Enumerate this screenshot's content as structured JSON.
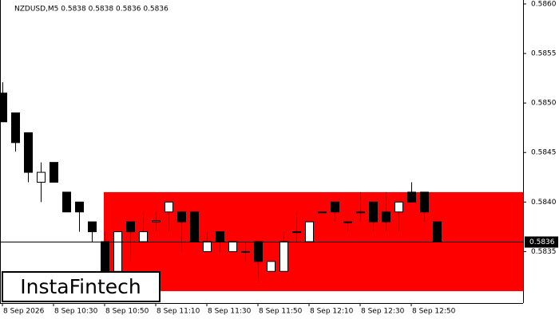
{
  "chart_data": {
    "type": "candlestick",
    "title": "NZDUSD,M5  0.5838 0.5838 0.5836 0.5836",
    "watermark": "InstaFintech",
    "categories": [
      "8 Sep 2026",
      null,
      null,
      null,
      "8 Sep 10:30",
      null,
      null,
      null,
      "8 Sep 10:50",
      null,
      null,
      null,
      "8 Sep 11:10",
      null,
      null,
      null,
      "8 Sep 11:30",
      null,
      null,
      null,
      "8 Sep 11:50",
      null,
      null,
      null,
      "8 Sep 12:10",
      null,
      null,
      null,
      "8 Sep 12:30",
      null,
      null,
      null,
      "8 Sep 12:50",
      null,
      null
    ],
    "open": [
      0.5851,
      0.5849,
      0.5847,
      0.5842,
      0.5844,
      0.5841,
      0.584,
      0.5838,
      0.5836,
      0.5833,
      0.5838,
      0.5836,
      0.5838,
      0.5839,
      0.5839,
      0.5839,
      0.5835,
      0.5837,
      0.5835,
      0.5835,
      0.5836,
      0.5833,
      0.5833,
      0.5837,
      0.5836,
      0.5839,
      0.584,
      0.5838,
      0.5839,
      0.584,
      0.5839,
      0.5839,
      0.5841,
      0.5841,
      0.5838
    ],
    "high": [
      0.58521,
      0.5849,
      0.5847,
      0.5844,
      0.5844,
      0.5841,
      0.584,
      0.5838,
      0.5837,
      0.5837,
      0.5838,
      0.5839,
      0.5839,
      0.584,
      0.5839,
      0.5839,
      0.5837,
      0.5837,
      0.5836,
      0.5836,
      0.5836,
      0.5834,
      0.5837,
      0.5839,
      0.5838,
      0.5839,
      0.584,
      0.5838,
      0.5841,
      0.584,
      0.5841,
      0.584,
      0.5842,
      0.5841,
      0.5838
    ],
    "low": [
      0.58481,
      0.58451,
      0.5842,
      0.584,
      0.5842,
      0.5839,
      0.5837,
      0.5836,
      0.5831,
      0.5833,
      0.5834,
      0.5836,
      0.5837,
      0.5837,
      0.5835,
      0.5836,
      0.5835,
      0.5835,
      0.5835,
      0.5834,
      0.5832,
      0.5833,
      0.5833,
      0.5836,
      0.5836,
      0.5839,
      0.5838,
      0.5837,
      0.5838,
      0.5837,
      0.5837,
      0.5837,
      0.584,
      0.5838,
      0.5836
    ],
    "close": [
      0.58481,
      0.5846,
      0.5843,
      0.5843,
      0.5842,
      0.5839,
      0.5839,
      0.5837,
      0.5833,
      0.5837,
      0.5837,
      0.5837,
      0.58381,
      0.584,
      0.5838,
      0.5836,
      0.5836,
      0.5836,
      0.5836,
      0.5835,
      0.5834,
      0.5834,
      0.5836,
      0.5837,
      0.5838,
      0.5839,
      0.5839,
      0.5838,
      0.5839,
      0.5838,
      0.5838,
      0.584,
      0.584,
      0.5839,
      0.5836
    ],
    "up_color": "#ffffff",
    "down_color": "#000000",
    "zone": {
      "from": 8,
      "high": 0.5841,
      "low": 0.5831,
      "color": "#ff0000"
    },
    "last_price": 0.5836,
    "ylim": [
      0.58298,
      0.58604
    ],
    "yticks": [
      {
        "value": 0.5835,
        "label": "0.5835"
      },
      {
        "value": 0.584,
        "label": "0.5840"
      },
      {
        "value": 0.5845,
        "label": "0.5845"
      },
      {
        "value": 0.585,
        "label": "0.5850"
      },
      {
        "value": 0.5855,
        "label": "0.5855"
      },
      {
        "value": 0.586,
        "label": "0.5860"
      }
    ]
  }
}
